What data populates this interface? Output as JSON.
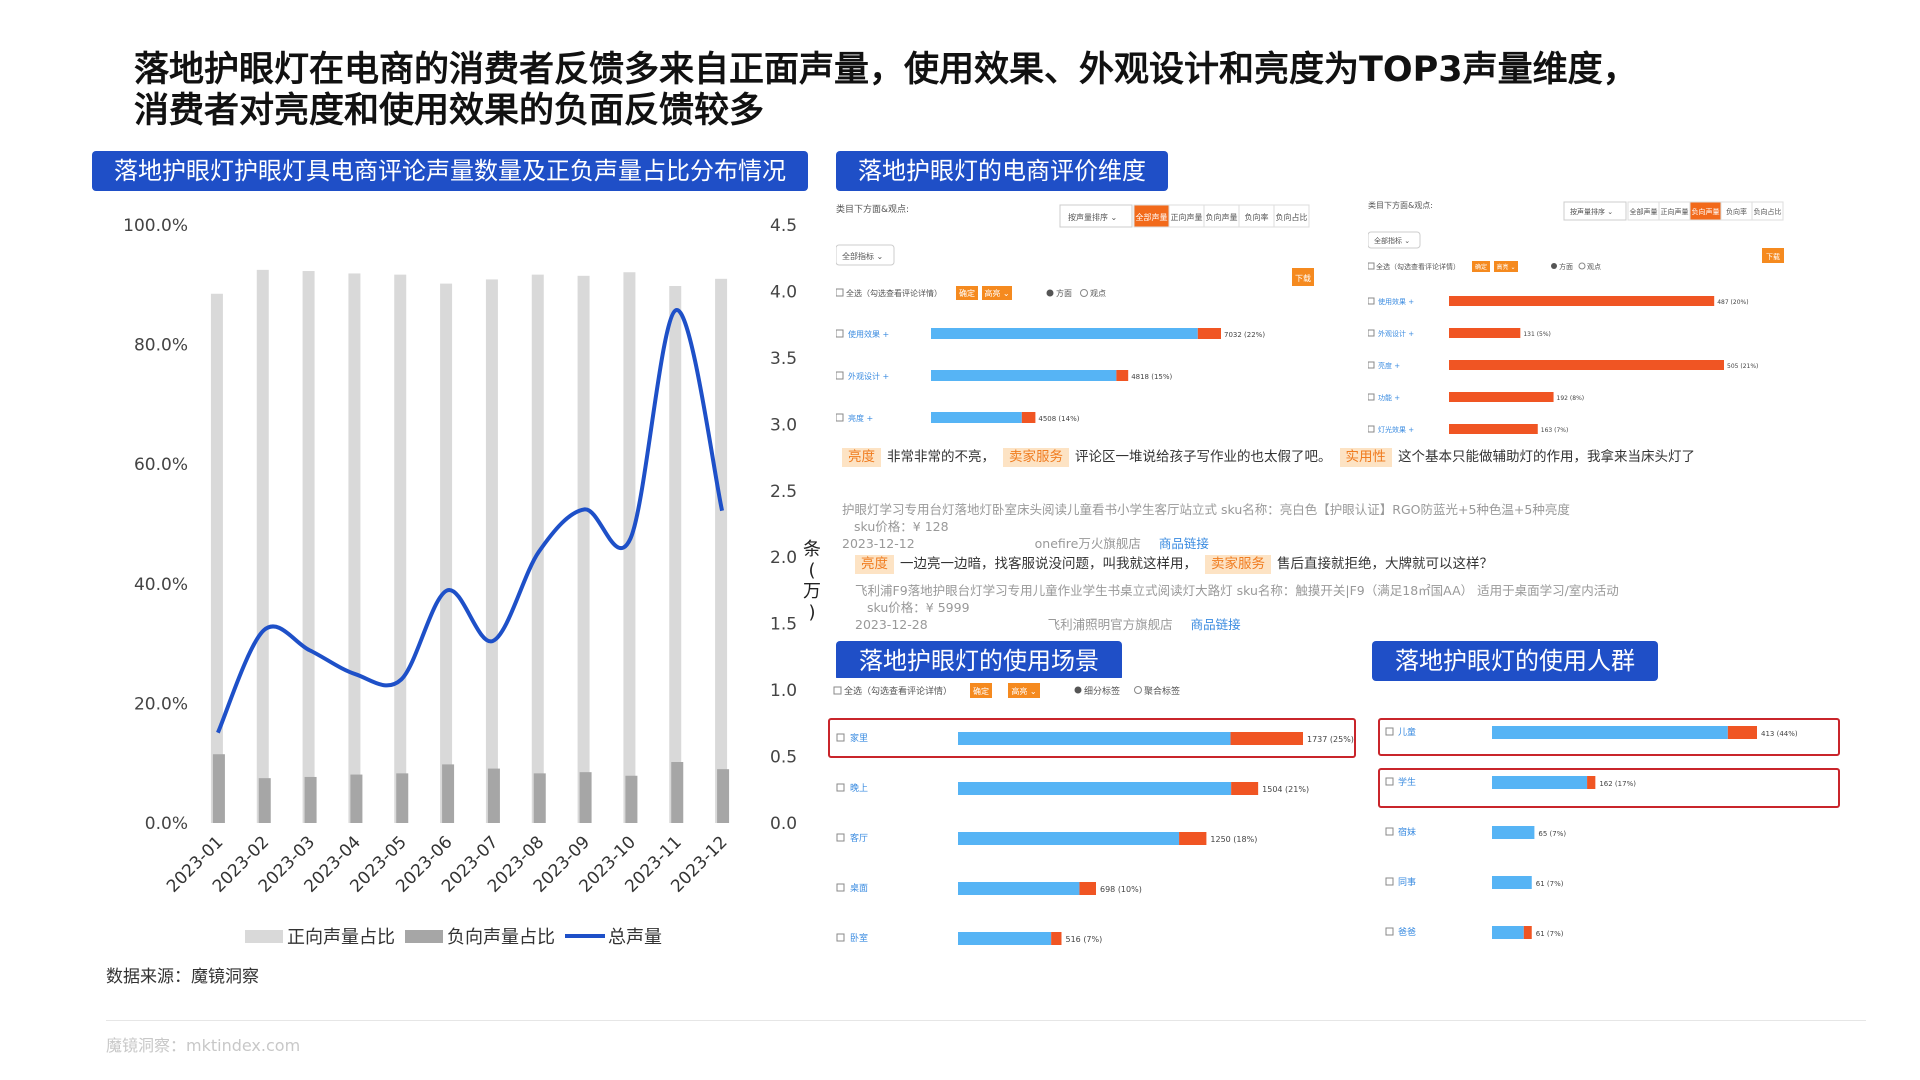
{
  "title": {
    "line1": "落地护眼灯在电商的消费者反馈多来自正面声量，使用效果、外观设计和亮度为TOP3声量维度，",
    "line2": "消费者对亮度和使用效果的负面反馈较多"
  },
  "sections": {
    "left_chart": "落地护眼灯护眼灯具电商评论声量数量及正负声量占比分布情况",
    "dimension": "落地护眼灯的电商评价维度",
    "scene": "落地护眼灯的使用场景",
    "crowd": "落地护眼灯的使用人群"
  },
  "chart_data": {
    "type": "bar",
    "categories": [
      "2023-01",
      "2023-02",
      "2023-03",
      "2023-04",
      "2023-05",
      "2023-06",
      "2023-07",
      "2023-08",
      "2023-09",
      "2023-10",
      "2023-11",
      "2023-12"
    ],
    "series": [
      {
        "name": "正向声量占比",
        "type": "bar",
        "axis": "left",
        "color": "#d9d9d9",
        "values": [
          88.5,
          92.5,
          92.3,
          91.9,
          91.7,
          90.2,
          90.9,
          91.7,
          91.5,
          92.1,
          89.8,
          91.0
        ]
      },
      {
        "name": "负向声量占比",
        "type": "bar",
        "axis": "left",
        "color": "#a6a6a6",
        "values": [
          11.5,
          7.5,
          7.7,
          8.1,
          8.3,
          9.8,
          9.1,
          8.3,
          8.5,
          7.9,
          10.2,
          9.0
        ]
      },
      {
        "name": "总声量",
        "type": "line",
        "axis": "right",
        "color": "#1e50c8",
        "values": [
          0.68,
          1.45,
          1.3,
          1.12,
          1.08,
          1.75,
          1.37,
          2.04,
          2.36,
          2.14,
          3.86,
          2.35
        ]
      }
    ],
    "ylim": [
      0,
      100
    ],
    "y_ticks": [
      "0.0%",
      "20.0%",
      "40.0%",
      "60.0%",
      "80.0%",
      "100.0%"
    ],
    "y2lim": [
      0,
      4.5
    ],
    "y2_ticks": [
      "0.0",
      "0.5",
      "1.0",
      "1.5",
      "2.0",
      "2.5",
      "3.0",
      "3.5",
      "4.0",
      "4.5"
    ],
    "y2label": "条（万）",
    "legend_position": "bottom"
  },
  "source": "数据来源：魔镜洞察",
  "footer": "魔镜洞察：mktindex.com",
  "dim_panel": {
    "filter_label": "类目下方面&观点:",
    "dropdown": "按声量排序",
    "tabs": [
      "全部声量",
      "正向声量",
      "负向声量",
      "负向率",
      "负向占比"
    ],
    "scope": "全部指标",
    "select_all": "全选（勾选查看评论详情）",
    "confirm": "确定",
    "highlight": "高亮",
    "radio1": "方面",
    "radio2": "观点",
    "download": "下载",
    "left_rows": [
      {
        "label": "使用效果",
        "value": "7032 (22%)",
        "pos": 0.92,
        "neg": 0.08
      },
      {
        "label": "外观设计",
        "value": "4818 (15%)",
        "pos": 0.94,
        "neg": 0.06
      },
      {
        "label": "亮度",
        "value": "4508 (14%)",
        "pos": 0.87,
        "neg": 0.13
      }
    ],
    "right_rows": [
      {
        "label": "使用效果",
        "value": "487 (20%)"
      },
      {
        "label": "外观设计",
        "value": "131 (5%)"
      },
      {
        "label": "亮度",
        "value": "505 (21%)"
      },
      {
        "label": "功能",
        "value": "192 (8%)"
      },
      {
        "label": "灯光效果",
        "value": "163 (7%)"
      }
    ]
  },
  "reviews": [
    {
      "segments": [
        {
          "tag": "亮度",
          "text": "非常非常的不亮，"
        },
        {
          "tag": "卖家服务",
          "text": "评论区一堆说给孩子写作业的也太假了吧。"
        },
        {
          "tag": "实用性",
          "text": "这个基本只能做辅助灯的作用，我拿来当床头灯了"
        }
      ],
      "product": "护眼灯学习专用台灯落地灯卧室床头阅读儿童看书小学生客厅站立式",
      "sku": "sku名称：亮白色【护眼认证】RGO防蓝光+5种色温+5种亮度",
      "price": "sku价格：¥ 128",
      "date": "2023-12-12",
      "shop": "onefire万火旗舰店",
      "link": "商品链接"
    },
    {
      "segments": [
        {
          "tag": "亮度",
          "text": "一边亮一边暗，找客服说没问题，叫我就这样用，"
        },
        {
          "tag": "卖家服务",
          "text": "售后直接就拒绝，大牌就可以这样？"
        }
      ],
      "product": "飞利浦F9落地护眼台灯学习专用儿童作业学生书桌立式阅读灯大路灯",
      "sku": "sku名称：触摸开关|F9（满足18㎡国AA） 适用于桌面学习/室内活动",
      "price": "sku价格：¥ 5999",
      "date": "2023-12-28",
      "shop": "飞利浦照明官方旗舰店",
      "link": "商品链接"
    }
  ],
  "scene_panel": {
    "select_all": "全选（勾选查看评论详情）",
    "confirm": "确定",
    "highlight": "高亮",
    "radio1": "细分标签",
    "radio2": "聚合标签",
    "rows": [
      {
        "label": "家里",
        "value": "1737 (25%)",
        "len": 1.0,
        "pos": 0.79
      },
      {
        "label": "晚上",
        "value": "1504 (21%)",
        "len": 0.87,
        "pos": 0.91
      },
      {
        "label": "客厅",
        "value": "1250 (18%)",
        "len": 0.72,
        "pos": 0.89
      },
      {
        "label": "桌面",
        "value": "698 (10%)",
        "len": 0.4,
        "pos": 0.88
      },
      {
        "label": "卧室",
        "value": "516 (7%)",
        "len": 0.3,
        "pos": 0.9
      }
    ]
  },
  "crowd_panel": {
    "rows": [
      {
        "label": "儿童",
        "value": "413 (44%)",
        "len": 1.0,
        "pos": 0.89
      },
      {
        "label": "学生",
        "value": "162 (17%)",
        "len": 0.39,
        "pos": 0.92
      },
      {
        "label": "宿妹",
        "value": "65 (7%)",
        "len": 0.16,
        "pos": 1.0
      },
      {
        "label": "同事",
        "value": "61 (7%)",
        "len": 0.15,
        "pos": 1.0
      },
      {
        "label": "爸爸",
        "value": "61 (7%)",
        "len": 0.15,
        "pos": 0.8
      }
    ]
  }
}
